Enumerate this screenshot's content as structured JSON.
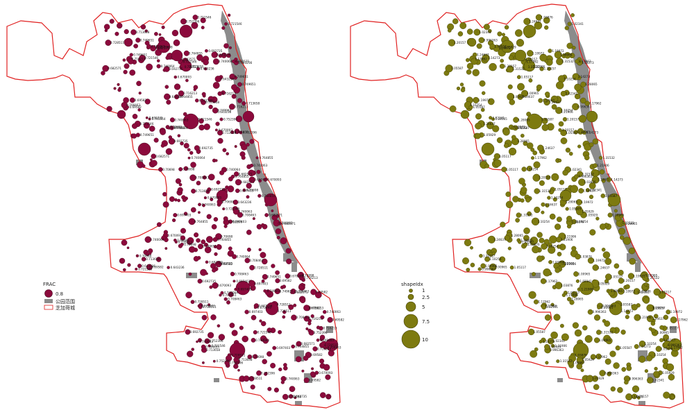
{
  "left_map": {
    "legend": {
      "title": "FRAC",
      "symbol_label": "0.8",
      "park_label": "公园范围",
      "boundary_label": "芝加哥城"
    },
    "point_color": "#8b0a3c",
    "point_stroke": "#4a0a20",
    "sample_labels": [
      "0.70698",
      "0.752396",
      "0.740063",
      "0.69582",
      "0.728511",
      "0.749651",
      "0.682571",
      "0.721546",
      "0.643236",
      "0.692735",
      "0.713658",
      "0.670093",
      "0.740064",
      "0.697403",
      "0.708463",
      "0.716213",
      "0.764855"
    ]
  },
  "right_map": {
    "legend": {
      "title": "shapeIdx",
      "symbols": [
        "1",
        "2.5",
        "5",
        "7.5",
        "10"
      ]
    },
    "point_color": "#7d7a10",
    "point_stroke": "#3f3d05",
    "sample_labels": [
      "1.05929",
      "1.05587",
      "1.00965",
      "1.21906",
      "1.31532",
      "1.20157",
      "1.10254",
      "1.24637",
      "1.03876",
      "1.19972",
      "0.996363",
      "1.17962",
      "1.28065",
      "1.14273",
      "1.02341",
      "1.05117"
    ]
  },
  "colors": {
    "boundary": "#e02020",
    "park": "#8c8c8c",
    "background": "#ffffff"
  }
}
